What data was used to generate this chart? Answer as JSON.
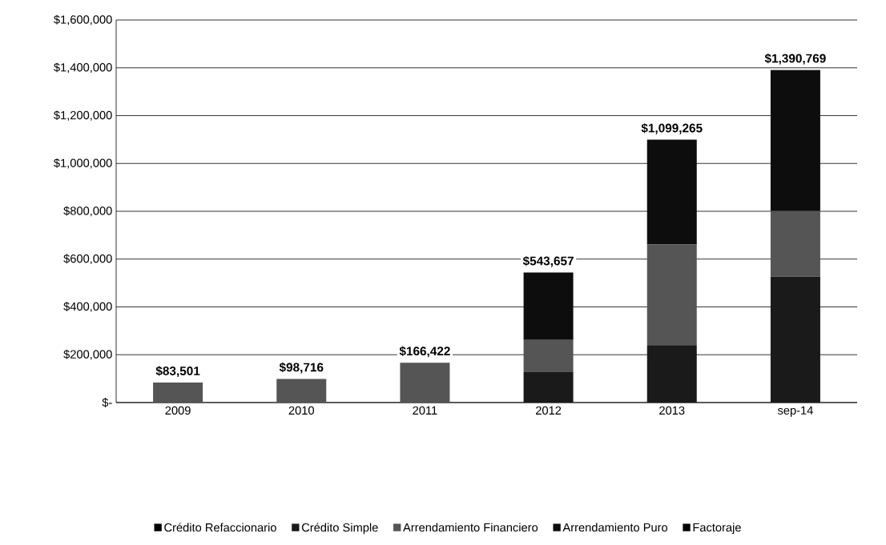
{
  "chart_data": {
    "type": "bar",
    "stacked": true,
    "categories": [
      "2009",
      "2010",
      "2011",
      "2012",
      "2013",
      "sep-14"
    ],
    "series": [
      {
        "name": "Crédito Refaccionario",
        "color": "#000000",
        "values": [
          0,
          0,
          0,
          0,
          0,
          0
        ]
      },
      {
        "name": "Crédito Simple",
        "color": "#1a1a1a",
        "values": [
          0,
          0,
          0,
          127000,
          240000,
          526000
        ]
      },
      {
        "name": "Arrendamiento Financiero",
        "color": "#555555",
        "values": [
          83501,
          98716,
          166422,
          135000,
          421000,
          275000
        ]
      },
      {
        "name": "Arrendamiento Puro",
        "color": "#0d0d0d",
        "values": [
          0,
          0,
          0,
          281657,
          438265,
          589769
        ]
      },
      {
        "name": "Factoraje",
        "color": "#000000",
        "values": [
          0,
          0,
          0,
          0,
          0,
          0
        ]
      }
    ],
    "totals": [
      "$83,501",
      "$98,716",
      "$166,422",
      "$543,657",
      "$1,099,265",
      "$1,390,769"
    ],
    "ylim": [
      0,
      1600000
    ],
    "yticks": [
      {
        "value": 0,
        "label": "$-"
      },
      {
        "value": 200000,
        "label": "$200,000"
      },
      {
        "value": 400000,
        "label": "$400,000"
      },
      {
        "value": 600000,
        "label": "$600,000"
      },
      {
        "value": 800000,
        "label": "$800,000"
      },
      {
        "value": 1000000,
        "label": "$1,000,000"
      },
      {
        "value": 1200000,
        "label": "$1,200,000"
      },
      {
        "value": 1400000,
        "label": "$1,400,000"
      },
      {
        "value": 1600000,
        "label": "$1,600,000"
      }
    ],
    "grid": "y",
    "legend": "bottom"
  }
}
